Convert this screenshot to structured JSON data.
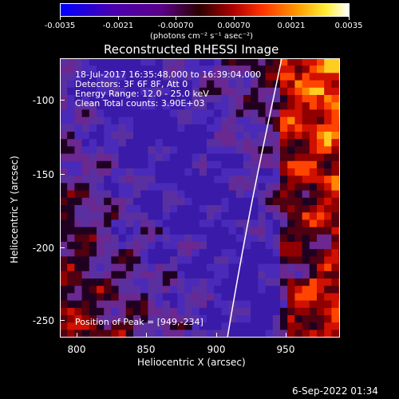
{
  "colorbar": {
    "tick_labels": [
      "-0.0035",
      "-0.0021",
      "-0.00070",
      "0.00070",
      "0.0021",
      "0.0035"
    ],
    "units_label": "(photons cm⁻² s⁻¹ asec⁻²)",
    "colors": [
      "#0000ff",
      "#3300cc",
      "#660099",
      "#800000",
      "#ff0000",
      "#ffcc00",
      "#ffffff"
    ]
  },
  "plot": {
    "title": "Reconstructed RHESSI Image",
    "info_lines": [
      "18-Jul-2017 16:35:48.000 to 16:39:04.000",
      "Detectors: 3F 6F 8F, Att 0",
      "Energy Range: 12.0 - 25.0 keV",
      "Clean     Total counts: 3.90E+03"
    ],
    "peak_label": "Position of Peak = [949,-234]",
    "x_axis": {
      "title": "Heliocentric X (arcsec)",
      "ticks": [
        "800",
        "850",
        "900",
        "950"
      ]
    },
    "y_axis": {
      "title": "Heliocentric Y (arcsec)",
      "ticks": [
        "-100",
        "-150",
        "-200",
        "-250"
      ]
    }
  },
  "footer": {
    "timestamp": "6-Sep-2022 01:34"
  }
}
